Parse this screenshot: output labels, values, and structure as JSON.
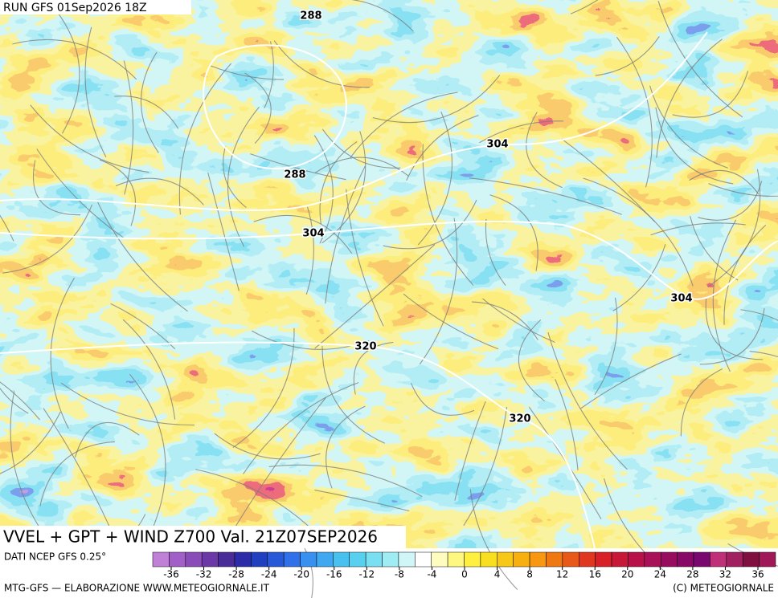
{
  "header": {
    "run": "RUN GFS 01Sep2026 18Z",
    "product": "VVEL + GPT + WIND Z700 Val. 21Z07SEP2026"
  },
  "contour_labels": [
    "288",
    "304",
    "288",
    "304",
    "304",
    "320",
    "320"
  ],
  "colorbar": {
    "ticks": [
      -36,
      -32,
      -28,
      -24,
      -20,
      -16,
      -12,
      -8,
      -4,
      0,
      4,
      8,
      12,
      16,
      20,
      24,
      28,
      32,
      36
    ]
  },
  "footer": {
    "source": "DATI NCEP GFS 0.25°",
    "credit": "MTG-GFS — ELABORAZIONE WWW.METEOGIORNALE.IT",
    "copyright": "(C) METEOGIORNALE"
  }
}
